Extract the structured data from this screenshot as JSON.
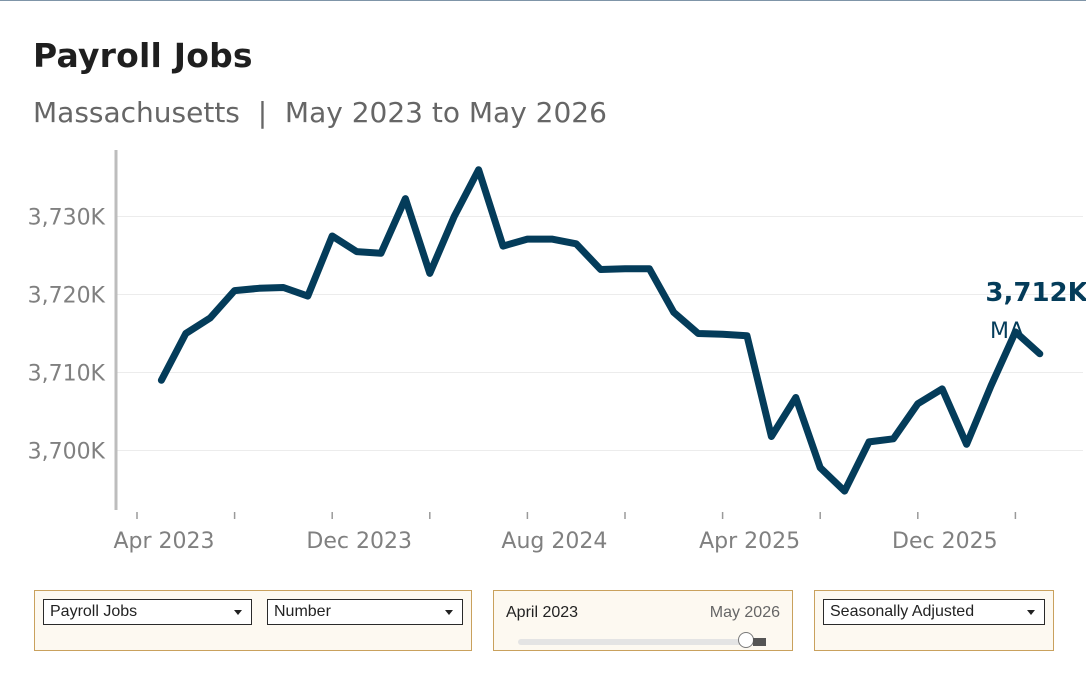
{
  "header": {
    "title": "Payroll Jobs",
    "subtitle": "Massachusetts  |  May 2023 to May 2026"
  },
  "colors": {
    "line": "#043c5a",
    "axis_text": "#808080",
    "gridline": "#ececec",
    "control_border": "#c9a15d",
    "control_background": "#fdf9f1"
  },
  "controls": {
    "measure_select": "Payroll Jobs",
    "type_select": "Number",
    "range_start": "April 2023",
    "range_end": "May 2026",
    "range_slider_value": 1.0,
    "adjustment_select": "Seasonally Adjusted"
  },
  "chart_data": {
    "type": "line",
    "title": "Payroll Jobs",
    "subtitle": "Massachusetts | May 2023 to May 2026",
    "xlabel": "",
    "ylabel": "",
    "grid": "horizontal",
    "ylim": [
      3695000,
      3738000
    ],
    "yticks": [
      3700000,
      3710000,
      3720000,
      3730000
    ],
    "ytick_labels": [
      "3,700K",
      "3,710K",
      "3,720K",
      "3,730K"
    ],
    "xtick_labels": [
      {
        "date": "2023-04",
        "label": "Apr 2023"
      },
      {
        "date": "2023-12",
        "label": "Dec 2023"
      },
      {
        "date": "2024-08",
        "label": "Aug 2024"
      },
      {
        "date": "2025-04",
        "label": "Apr 2025"
      },
      {
        "date": "2025-12",
        "label": "Dec 2025"
      }
    ],
    "end_label": {
      "value": "3,712K",
      "series": "MA"
    },
    "series": [
      {
        "name": "MA",
        "x": [
          "2023-05",
          "2023-06",
          "2023-07",
          "2023-08",
          "2023-09",
          "2023-10",
          "2023-11",
          "2023-12",
          "2024-01",
          "2024-02",
          "2024-03",
          "2024-04",
          "2024-05",
          "2024-06",
          "2024-07",
          "2024-08",
          "2024-09",
          "2024-10",
          "2024-11",
          "2024-12",
          "2025-01",
          "2025-02",
          "2025-03",
          "2025-04",
          "2025-05",
          "2025-06",
          "2025-07",
          "2025-08",
          "2025-09",
          "2025-10",
          "2025-11",
          "2025-12",
          "2026-01",
          "2026-02",
          "2026-03",
          "2026-04",
          "2026-05"
        ],
        "values": [
          3709000,
          3715000,
          3717000,
          3720500,
          3720800,
          3720900,
          3719800,
          3727500,
          3725500,
          3725300,
          3732300,
          3722700,
          3730000,
          3736000,
          3726200,
          3727100,
          3727100,
          3726500,
          3723200,
          3723300,
          3723300,
          3717700,
          3715000,
          3714900,
          3714700,
          3701800,
          3706800,
          3697800,
          3694800,
          3701100,
          3701500,
          3706000,
          3707900,
          3700800,
          3708300,
          3715200,
          3712400
        ]
      }
    ]
  }
}
